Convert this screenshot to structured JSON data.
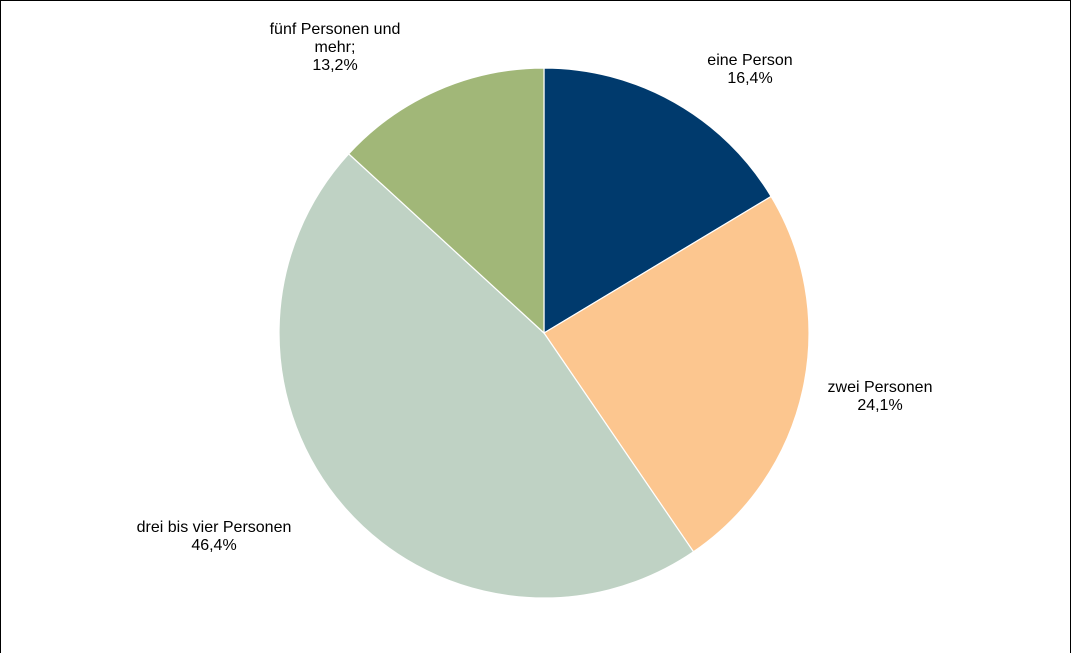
{
  "chart_data": {
    "type": "pie",
    "slices": [
      {
        "label": [
          "eine Person"
        ],
        "value_label": "16,4%",
        "value": 16.4,
        "color": "#003A6D"
      },
      {
        "label": [
          "zwei Personen"
        ],
        "value_label": "24,1%",
        "value": 24.1,
        "color": "#FCC68F"
      },
      {
        "label": [
          "drei bis vier Personen"
        ],
        "value_label": "46,4%",
        "value": 46.4,
        "color": "#BFD2C4"
      },
      {
        "label": [
          "fünf Personen und",
          "mehr;"
        ],
        "value_label": "13,2%",
        "value": 13.2,
        "color": "#A1B778"
      }
    ],
    "start_angle_deg": 0,
    "direction": "clockwise",
    "slice_border_color": "#ffffff",
    "legend": "none"
  }
}
